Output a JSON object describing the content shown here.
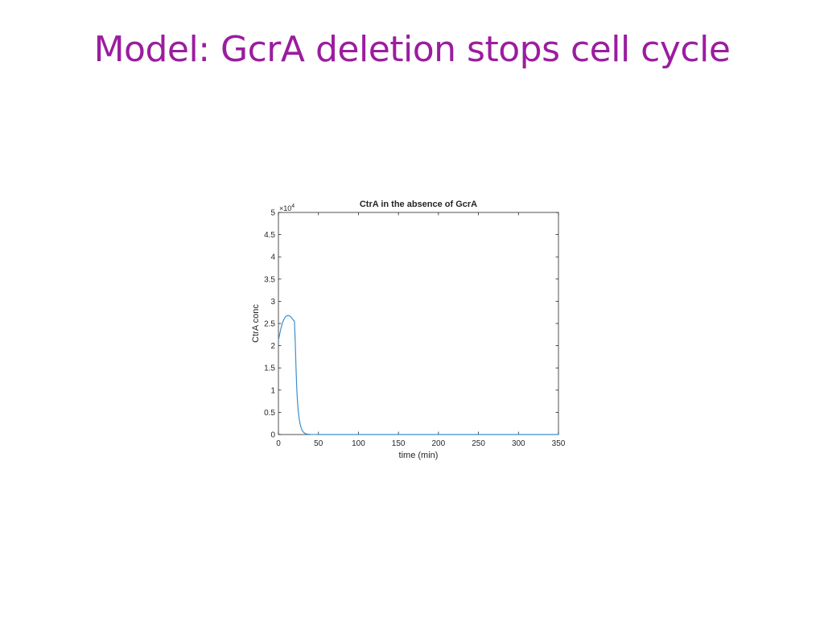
{
  "slide": {
    "title": "Model: GcrA deletion stops cell cycle"
  },
  "chart_data": {
    "type": "line",
    "title": "CtrA in the absence of GcrA",
    "xlabel": "time (min)",
    "ylabel": "CtrA conc",
    "y_multiplier": "×10",
    "y_multiplier_exp": "4",
    "xlim": [
      0,
      350
    ],
    "ylim": [
      0,
      5
    ],
    "xticks": [
      0,
      50,
      100,
      150,
      200,
      250,
      300,
      350
    ],
    "xtick_labels": [
      "0",
      "50",
      "100",
      "150",
      "200",
      "250",
      "300",
      "350"
    ],
    "yticks": [
      0,
      0.5,
      1,
      1.5,
      2,
      2.5,
      3,
      3.5,
      4,
      4.5,
      5
    ],
    "ytick_labels": [
      "0",
      "0.5",
      "1",
      "1.5",
      "2",
      "2.5",
      "3",
      "3.5",
      "4",
      "4.5",
      "5"
    ],
    "grid": false,
    "line_color": "#3a8fd0",
    "series": [
      {
        "x": [
          0,
          2,
          4,
          6,
          8,
          10,
          12,
          14,
          16,
          18,
          20,
          21,
          22,
          23,
          24,
          25,
          26,
          27,
          28,
          29,
          30,
          32,
          34,
          36,
          40,
          45,
          50,
          60,
          100,
          150,
          200,
          250,
          300,
          350
        ],
        "y": [
          2.12,
          2.3,
          2.45,
          2.56,
          2.63,
          2.67,
          2.68,
          2.67,
          2.64,
          2.59,
          2.55,
          2.1,
          1.5,
          1.0,
          0.7,
          0.5,
          0.35,
          0.25,
          0.17,
          0.12,
          0.08,
          0.04,
          0.02,
          0.01,
          0.003,
          0.001,
          0,
          0,
          0,
          0,
          0,
          0,
          0,
          0
        ]
      }
    ]
  }
}
